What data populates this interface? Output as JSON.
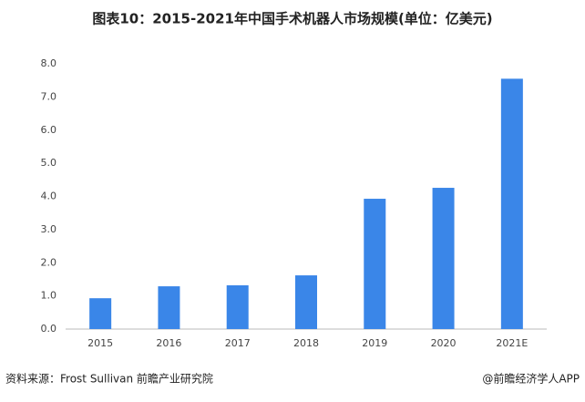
{
  "chart_data": {
    "type": "bar",
    "title": "图表10：2015-2021年中国手术机器人市场规模(单位：亿美元)",
    "categories": [
      "2015",
      "2016",
      "2017",
      "2018",
      "2019",
      "2020",
      "2021E"
    ],
    "values": [
      0.93,
      1.29,
      1.32,
      1.62,
      3.93,
      4.26,
      7.55
    ],
    "color": "#3a86e8",
    "ylim": [
      0,
      8
    ],
    "yticks": [
      {
        "value": 0,
        "label": "0.0"
      },
      {
        "value": 1,
        "label": "1.0"
      },
      {
        "value": 2,
        "label": "2.0"
      },
      {
        "value": 3,
        "label": "3.0"
      },
      {
        "value": 4,
        "label": "4.0"
      },
      {
        "value": 5,
        "label": "5.0"
      },
      {
        "value": 6,
        "label": "6.0"
      },
      {
        "value": 7,
        "label": "7.0"
      },
      {
        "value": 8,
        "label": "8.0"
      }
    ],
    "grid": false,
    "source": "资料来源：Frost Sullivan 前瞻产业研究院",
    "credit": "@前瞻经济学人APP"
  }
}
